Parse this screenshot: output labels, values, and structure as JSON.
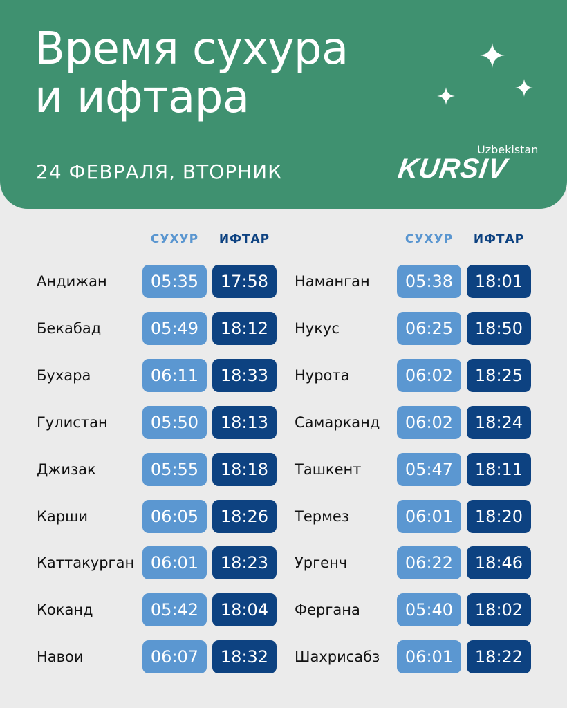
{
  "header": {
    "title_line1": "Время сухура",
    "title_line2": "и ифтара",
    "date": "24 ФЕВРАЛЯ, ВТОРНИК",
    "logo_sub": "Uzbekistan",
    "logo": "KURSIV"
  },
  "columns": {
    "suhur": "СУХУР",
    "iftar": "ИФТАР"
  },
  "colors": {
    "header": "#3f9170",
    "suhur": "#5b97d1",
    "iftar": "#0d4281",
    "background": "#ebebeb"
  },
  "left": [
    {
      "city": "Андижан",
      "suhur": "05:35",
      "iftar": "17:58"
    },
    {
      "city": "Бекабад",
      "suhur": "05:49",
      "iftar": "18:12"
    },
    {
      "city": "Бухара",
      "suhur": "06:11",
      "iftar": "18:33"
    },
    {
      "city": "Гулистан",
      "suhur": "05:50",
      "iftar": "18:13"
    },
    {
      "city": "Джизак",
      "suhur": "05:55",
      "iftar": "18:18"
    },
    {
      "city": "Карши",
      "suhur": "06:05",
      "iftar": "18:26"
    },
    {
      "city": "Каттакурган",
      "suhur": "06:01",
      "iftar": "18:23"
    },
    {
      "city": "Коканд",
      "suhur": "05:42",
      "iftar": "18:04"
    },
    {
      "city": "Навои",
      "suhur": "06:07",
      "iftar": "18:32"
    }
  ],
  "right": [
    {
      "city": "Наманган",
      "suhur": "05:38",
      "iftar": "18:01"
    },
    {
      "city": "Нукус",
      "suhur": "06:25",
      "iftar": "18:50"
    },
    {
      "city": "Нурота",
      "suhur": "06:02",
      "iftar": "18:25"
    },
    {
      "city": "Самарканд",
      "suhur": "06:02",
      "iftar": "18:24"
    },
    {
      "city": "Ташкент",
      "suhur": "05:47",
      "iftar": "18:11"
    },
    {
      "city": "Термез",
      "suhur": "06:01",
      "iftar": "18:20"
    },
    {
      "city": "Ургенч",
      "suhur": "06:22",
      "iftar": "18:46"
    },
    {
      "city": "Фергана",
      "suhur": "05:40",
      "iftar": "18:02"
    },
    {
      "city": "Шахрисабз",
      "suhur": "06:01",
      "iftar": "18:22"
    }
  ]
}
